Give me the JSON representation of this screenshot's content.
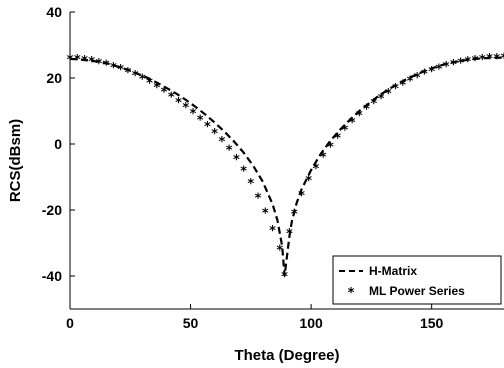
{
  "chart_data": {
    "type": "line",
    "xlabel": "Theta (Degree)",
    "ylabel": "RCS(dBsm)",
    "xlim": [
      0,
      180
    ],
    "ylim": [
      -50,
      40
    ],
    "xticks": [
      0,
      50,
      100,
      150
    ],
    "yticks": [
      -40,
      -20,
      0,
      20,
      40
    ],
    "grid": false,
    "legend_position": "bottom-right",
    "series": [
      {
        "name": "H-Matrix",
        "style": "dashed-line",
        "color": "#000000",
        "x": [
          0,
          4,
          8,
          12,
          16,
          20,
          24,
          28,
          32,
          36,
          40,
          44,
          48,
          52,
          56,
          60,
          64,
          68,
          72,
          76,
          80,
          84,
          86,
          88,
          89,
          90,
          91,
          92,
          94,
          96,
          100,
          104,
          108,
          112,
          116,
          120,
          124,
          128,
          132,
          136,
          140,
          144,
          148,
          152,
          156,
          160,
          164,
          168,
          172,
          176,
          180
        ],
        "y": [
          25.8,
          25.6,
          25.3,
          24.9,
          24.3,
          23.4,
          22.5,
          21.3,
          20.1,
          18.6,
          17.0,
          15.3,
          13.4,
          11.3,
          9.0,
          6.5,
          3.8,
          0.8,
          -2.6,
          -6.6,
          -11.5,
          -18.2,
          -23.0,
          -31.0,
          -40.0,
          -34.0,
          -28.0,
          -23.5,
          -17.9,
          -13.8,
          -7.9,
          -3.0,
          1.0,
          4.3,
          7.3,
          10.0,
          12.3,
          14.6,
          16.5,
          18.3,
          19.8,
          21.2,
          22.4,
          23.4,
          24.3,
          24.9,
          25.4,
          25.8,
          26.0,
          26.1,
          26.2
        ]
      },
      {
        "name": "ML Power Series",
        "style": "star-marker",
        "color": "#000000",
        "x": [
          0,
          3,
          6,
          9,
          12,
          15,
          18,
          21,
          24,
          27,
          30,
          33,
          36,
          39,
          42,
          45,
          48,
          51,
          54,
          57,
          60,
          63,
          66,
          69,
          72,
          75,
          78,
          81,
          84,
          87,
          89,
          91,
          93,
          96,
          99,
          102,
          105,
          108,
          111,
          114,
          117,
          120,
          123,
          126,
          129,
          132,
          135,
          138,
          141,
          144,
          147,
          150,
          153,
          156,
          159,
          162,
          165,
          168,
          171,
          174,
          177,
          180
        ],
        "y": [
          25.8,
          25.7,
          25.4,
          25.1,
          24.6,
          24.1,
          23.4,
          22.7,
          21.8,
          20.9,
          19.8,
          18.6,
          17.3,
          15.9,
          14.4,
          12.8,
          11.2,
          9.4,
          7.5,
          5.5,
          3.3,
          0.9,
          -1.7,
          -4.6,
          -8.0,
          -11.8,
          -16.2,
          -20.8,
          -26.0,
          -32.0,
          -40.0,
          -27.0,
          -21.0,
          -15.5,
          -10.9,
          -7.2,
          -3.8,
          -0.8,
          1.9,
          4.4,
          6.7,
          8.8,
          10.7,
          12.4,
          14.0,
          15.5,
          16.9,
          18.1,
          19.3,
          20.3,
          21.3,
          22.1,
          22.9,
          23.6,
          24.2,
          24.7,
          25.1,
          25.5,
          25.8,
          26.0,
          26.1,
          26.2
        ]
      }
    ]
  }
}
